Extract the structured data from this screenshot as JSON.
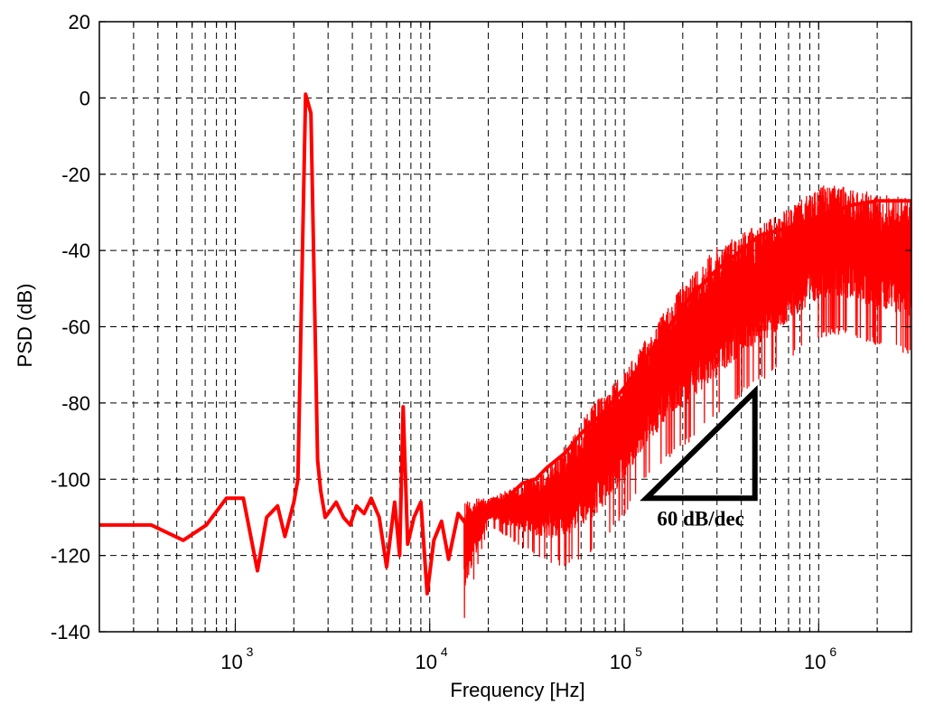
{
  "chart_data": {
    "type": "line",
    "title": "",
    "xlabel": "Frequency [Hz]",
    "ylabel": "PSD (dB)",
    "x_scale": "log",
    "xlim": [
      200,
      3000000
    ],
    "ylim": [
      -140,
      20
    ],
    "grid": true,
    "grid_style": "dashed",
    "x_tick_labels": [
      {
        "base": "10",
        "exp": "3"
      },
      {
        "base": "10",
        "exp": "4"
      },
      {
        "base": "10",
        "exp": "5"
      },
      {
        "base": "10",
        "exp": "6"
      }
    ],
    "y_tick_labels": [
      "20",
      "0",
      "-20",
      "-40",
      "-60",
      "-80",
      "-100",
      "-120",
      "-140"
    ],
    "series": [
      {
        "color": "#ff0000",
        "envelope_low": [
          -137,
          -112,
          -118,
          -122,
          -123,
          -120,
          -110,
          -100,
          -95,
          -90,
          -85,
          -78,
          -72,
          -66,
          -63,
          -62,
          -65,
          -68
        ],
        "x": [
          200,
          370,
          540,
          710,
          900,
          1100,
          1300,
          1450,
          1650,
          1800,
          2000,
          2100,
          2300,
          2450,
          2650,
          2750,
          2900,
          3100,
          3300,
          3600,
          3900,
          4200,
          4600,
          5000,
          5500,
          6000,
          6600,
          7000,
          7300,
          7700,
          8300,
          9000,
          9700,
          10500,
          11500,
          12500,
          14000,
          16000,
          18000,
          20000,
          23000,
          26000,
          30000,
          35000,
          40000,
          50000,
          60000,
          80000,
          100000,
          130000,
          170000,
          220000,
          300000,
          400000,
          500000,
          700000,
          1000000,
          1500000,
          2000000,
          3000000
        ],
        "envelope_high": [
          -105,
          -105,
          -101,
          -97,
          -91,
          -80,
          -72,
          -63,
          -54,
          -46,
          -39,
          -35,
          -31,
          -27,
          -23,
          -23,
          -25,
          -26
        ],
        "envelope_x": [
          15000,
          20000,
          30000,
          40000,
          50000,
          70000,
          100000,
          130000,
          170000,
          220000,
          300000,
          400000,
          600000,
          800000,
          1000000,
          1300000,
          2000000,
          3000000
        ],
        "y": [
          -112,
          -112,
          -116,
          -112,
          -105,
          -105,
          -124,
          -110,
          -107,
          -115,
          -106,
          -100,
          1,
          -4,
          -95,
          -103,
          -110,
          -108,
          -106,
          -110,
          -112,
          -107,
          -109,
          -105,
          -110,
          -123,
          -106,
          -120,
          -81,
          -117,
          -110,
          -106,
          -130,
          -116,
          -111,
          -121,
          -109,
          -113,
          -112,
          -110,
          -108,
          -104,
          -101,
          -100,
          -97,
          -93,
          -88,
          -82,
          -76,
          -68,
          -60,
          -52,
          -45,
          -40,
          -36,
          -34,
          -31,
          -28,
          -27,
          -27
        ]
      }
    ],
    "annotations": [
      {
        "text": "60 dB/dec",
        "type": "slope-triangle",
        "x": [
          130000,
          470000,
          470000
        ],
        "y": [
          -105,
          -105,
          -77
        ]
      }
    ]
  }
}
